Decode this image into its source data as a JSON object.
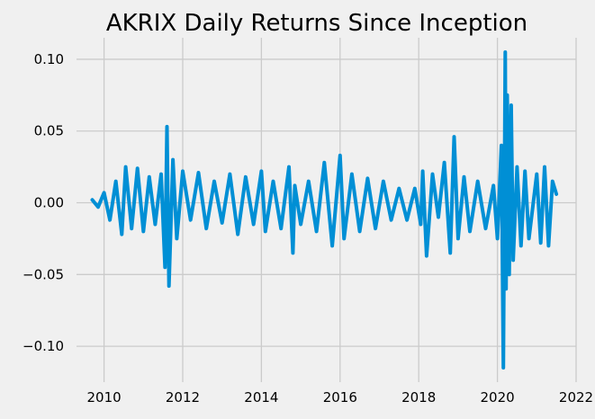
{
  "chart_data": {
    "type": "line",
    "title": "AKRIX Daily Returns Since Inception",
    "xlabel": "",
    "ylabel": "",
    "xlim": [
      2009.3,
      2022.0
    ],
    "ylim": [
      -0.125,
      0.115
    ],
    "x_ticks": [
      2010,
      2012,
      2014,
      2016,
      2018,
      2020,
      2022
    ],
    "x_tick_labels": [
      "2010",
      "2012",
      "2014",
      "2016",
      "2018",
      "2020",
      "2022"
    ],
    "y_ticks": [
      0.1,
      0.05,
      0.0,
      -0.05,
      -0.1
    ],
    "y_tick_labels": [
      "0.10",
      "0.05",
      "0.00",
      "−0.05",
      "−0.10"
    ],
    "grid": true,
    "legend": "none",
    "colors": {
      "series": "#008fd5",
      "grid": "#cbcbcb",
      "background": "#f0f0f0"
    },
    "series": [
      {
        "x": [
          2009.7,
          2009.85,
          2010.0,
          2010.15,
          2010.3,
          2010.45,
          2010.55,
          2010.7,
          2010.85,
          2011.0,
          2011.15,
          2011.3,
          2011.45,
          2011.55,
          2011.6,
          2011.65,
          2011.75,
          2011.85,
          2012.0,
          2012.2,
          2012.4,
          2012.6,
          2012.8,
          2013.0,
          2013.2,
          2013.4,
          2013.6,
          2013.8,
          2014.0,
          2014.1,
          2014.3,
          2014.5,
          2014.7,
          2014.8,
          2014.85,
          2015.0,
          2015.2,
          2015.4,
          2015.6,
          2015.8,
          2016.0,
          2016.1,
          2016.3,
          2016.5,
          2016.7,
          2016.9,
          2017.1,
          2017.3,
          2017.5,
          2017.7,
          2017.9,
          2018.05,
          2018.1,
          2018.2,
          2018.35,
          2018.5,
          2018.65,
          2018.8,
          2018.9,
          2019.0,
          2019.15,
          2019.3,
          2019.5,
          2019.7,
          2019.9,
          2020.0,
          2020.1,
          2020.15,
          2020.2,
          2020.22,
          2020.25,
          2020.3,
          2020.35,
          2020.4,
          2020.5,
          2020.6,
          2020.7,
          2020.8,
          2021.0,
          2021.1,
          2021.2,
          2021.3,
          2021.4,
          2021.5
        ],
        "values": [
          0.002,
          -0.003,
          0.007,
          -0.012,
          0.015,
          -0.022,
          0.025,
          -0.018,
          0.024,
          -0.02,
          0.018,
          -0.015,
          0.02,
          -0.045,
          0.053,
          -0.058,
          0.03,
          -0.025,
          0.022,
          -0.012,
          0.021,
          -0.018,
          0.015,
          -0.014,
          0.02,
          -0.022,
          0.018,
          -0.015,
          0.022,
          -0.02,
          0.015,
          -0.018,
          0.025,
          -0.035,
          0.012,
          -0.015,
          0.015,
          -0.02,
          0.028,
          -0.03,
          0.033,
          -0.025,
          0.02,
          -0.02,
          0.017,
          -0.018,
          0.015,
          -0.012,
          0.01,
          -0.012,
          0.01,
          -0.015,
          0.022,
          -0.037,
          0.02,
          -0.01,
          0.028,
          -0.035,
          0.046,
          -0.025,
          0.018,
          -0.02,
          0.015,
          -0.018,
          0.012,
          -0.025,
          0.04,
          -0.115,
          0.105,
          -0.06,
          0.075,
          -0.05,
          0.068,
          -0.04,
          0.025,
          -0.03,
          0.022,
          -0.025,
          0.02,
          -0.028,
          0.025,
          -0.03,
          0.015,
          0.006
        ]
      }
    ]
  }
}
